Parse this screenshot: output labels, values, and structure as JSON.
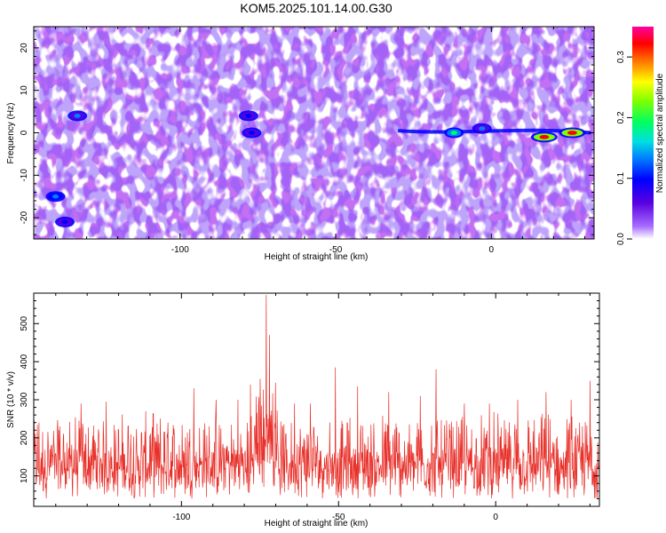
{
  "title": "KOM5.2025.101.14.00.G30",
  "chart_data": [
    {
      "type": "heatmap",
      "xlabel": "Height of straight line (km)",
      "ylabel": "Frequency (Hz)",
      "xlim": [
        -147,
        33
      ],
      "ylim": [
        -25,
        25
      ],
      "xticks": [
        -100,
        -50,
        0
      ],
      "xtick_labels": [
        "-100",
        "-50",
        "0"
      ],
      "yticks": [
        -20,
        -10,
        0,
        10,
        20
      ],
      "ytick_labels": [
        "-20",
        "-10",
        "0",
        "10",
        "20"
      ],
      "colorbar": {
        "label": "Normalized spectral amplitude",
        "range": [
          0,
          0.35
        ],
        "ticks": [
          0,
          0.1,
          0.2,
          0.3
        ],
        "tick_labels": [
          "0.0",
          "0.1",
          "0.2",
          "0.3"
        ],
        "colors": [
          "#ffffff",
          "#8a2be2",
          "#0000ff",
          "#00bfff",
          "#00ff80",
          "#80ff00",
          "#ffff00",
          "#ff8000",
          "#ff0000",
          "#ff00a0"
        ]
      },
      "features": [
        {
          "x": -77,
          "y": 0,
          "value": 0.12
        },
        {
          "x": -78,
          "y": 4,
          "value": 0.12
        },
        {
          "x": -12,
          "y": 0,
          "value": 0.22
        },
        {
          "x": -3,
          "y": 1,
          "value": 0.13
        },
        {
          "x": 17,
          "y": -1,
          "value": 0.33
        },
        {
          "x": 26,
          "y": 0,
          "value": 0.33
        },
        {
          "x": -140,
          "y": -15,
          "value": 0.15
        },
        {
          "x": -137,
          "y": -21,
          "value": 0.12
        },
        {
          "x": -133,
          "y": 4,
          "value": 0.13
        }
      ],
      "grid": false
    },
    {
      "type": "line",
      "xlabel": "Height of straight line (km)",
      "ylabel": "SNR (10 * v/v)",
      "xlim": [
        -147,
        33
      ],
      "ylim": [
        20,
        580
      ],
      "xticks": [
        -100,
        -50,
        0
      ],
      "xtick_labels": [
        "-100",
        "-50",
        "0"
      ],
      "yticks": [
        100,
        200,
        300,
        400,
        500
      ],
      "ytick_labels": [
        "100",
        "200",
        "300",
        "400",
        "500"
      ],
      "series": [
        {
          "color": "#e8302a",
          "baseline": 120,
          "noise_range": [
            40,
            270
          ],
          "peaks": [
            {
              "x": -139,
              "y": 220
            },
            {
              "x": -132,
              "y": 290
            },
            {
              "x": -124,
              "y": 295
            },
            {
              "x": -117,
              "y": 230
            },
            {
              "x": -109,
              "y": 265
            },
            {
              "x": -96,
              "y": 330
            },
            {
              "x": -89,
              "y": 300
            },
            {
              "x": -82,
              "y": 300
            },
            {
              "x": -78,
              "y": 340
            },
            {
              "x": -75,
              "y": 355
            },
            {
              "x": -73,
              "y": 575
            },
            {
              "x": -72,
              "y": 470
            },
            {
              "x": -70,
              "y": 345
            },
            {
              "x": -64,
              "y": 290
            },
            {
              "x": -59,
              "y": 290
            },
            {
              "x": -51,
              "y": 385
            },
            {
              "x": -44,
              "y": 335
            },
            {
              "x": -34,
              "y": 320
            },
            {
              "x": -24,
              "y": 310
            },
            {
              "x": -19,
              "y": 380
            },
            {
              "x": -10,
              "y": 290
            },
            {
              "x": -2,
              "y": 290
            },
            {
              "x": 7,
              "y": 300
            },
            {
              "x": 16,
              "y": 320
            },
            {
              "x": 24,
              "y": 300
            },
            {
              "x": 30,
              "y": 350
            }
          ]
        }
      ],
      "grid": false
    }
  ]
}
